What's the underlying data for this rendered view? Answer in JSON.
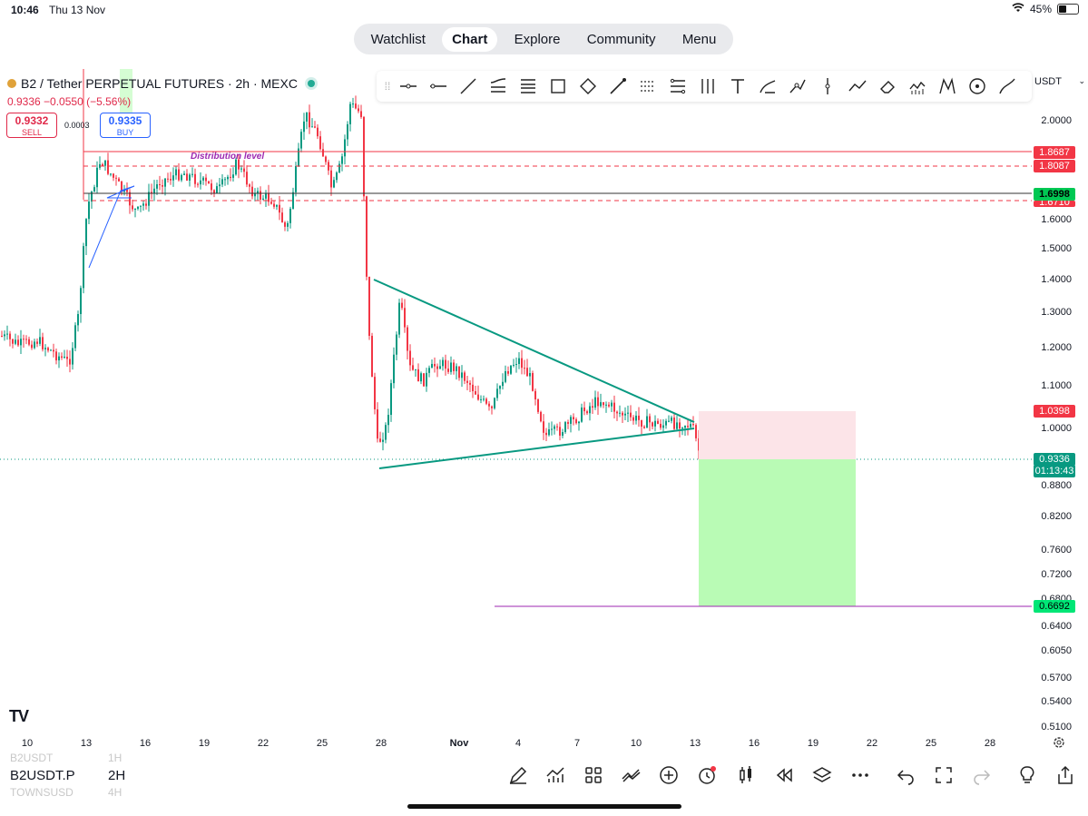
{
  "status": {
    "time": "10:46",
    "date": "Thu 13 Nov",
    "battery": "45%",
    "battery_level": 0.45
  },
  "nav": {
    "tabs": [
      {
        "label": "Watchlist",
        "active": false
      },
      {
        "label": "Chart",
        "active": true
      },
      {
        "label": "Explore",
        "active": false
      },
      {
        "label": "Community",
        "active": false
      },
      {
        "label": "Menu",
        "active": false
      }
    ]
  },
  "header": {
    "title": "B2 / Tether PERPETUAL FUTURES · 2h · MEXC",
    "quote": "0.9336  −0.0550 (−5.56%)",
    "sell": {
      "price": "0.9332",
      "label": "SELL"
    },
    "buy": {
      "price": "0.9335",
      "label": "BUY"
    },
    "spread": "0.0003"
  },
  "toolbar": {
    "currency": "USDT",
    "tools": [
      "horizontal-ray-icon",
      "horizontal-line-icon",
      "trend-line-icon",
      "fib-retracement-icon",
      "parallel-channel-icon",
      "rectangle-icon",
      "ellipse-icon",
      "arrow-icon",
      "pitchfork-icon",
      "date-range-icon",
      "long-position-icon",
      "text-icon",
      "brush-icon",
      "path-icon",
      "vertical-line-icon",
      "pattern-icon",
      "eraser-icon",
      "indicator-icon",
      "xabcd-icon",
      "circle-icon",
      "curve-icon"
    ]
  },
  "chart": {
    "distribution_label": "Distribution level",
    "price_ticks": [
      "2.0000",
      "1.6000",
      "1.5000",
      "1.4000",
      "1.3000",
      "1.2000",
      "1.1000",
      "1.0000",
      "0.8800",
      "0.8200",
      "0.7600",
      "0.7200",
      "0.6800",
      "0.6400",
      "0.6050",
      "0.5700",
      "0.5400",
      "0.5100"
    ],
    "price_labels": [
      {
        "text": "1.8687",
        "color": "#f23645"
      },
      {
        "text": "1.8087",
        "color": "#f23645"
      },
      {
        "text": "1.6998",
        "color": "#00c853"
      },
      {
        "text": "1.6710",
        "color": "#f23645"
      },
      {
        "text": "1.0398",
        "color": "#f23645"
      },
      {
        "text": "0.9336",
        "color": "#089981"
      },
      {
        "text": "01:13:43",
        "color": "#089981"
      },
      {
        "text": "0.6692",
        "color": "#00e676"
      }
    ],
    "date_ticks": [
      "10",
      "13",
      "16",
      "19",
      "22",
      "25",
      "28",
      "Nov",
      "4",
      "7",
      "10",
      "13",
      "16",
      "19",
      "22",
      "25",
      "28"
    ],
    "triangle_colors": {
      "line": "#089981"
    },
    "position": {
      "entry": "0.9336",
      "stop": "1.0398",
      "target": "0.6692",
      "stop_color": "#fce4e8",
      "target_color": "#b9fbb5"
    }
  },
  "bottom": {
    "symbol": "B2USDT.P",
    "interval": "2H",
    "ghost_symbol_above": "B2USDT",
    "ghost_interval_above": "1H",
    "ghost_symbol_below": "TOWNSUSD",
    "ghost_interval_below": "4H",
    "icons": [
      "pen-icon",
      "indicators-icon",
      "templates-icon",
      "compare-icon",
      "add-icon",
      "alert-icon",
      "candles-icon",
      "replay-icon",
      "layers-icon",
      "more-icon",
      "undo-icon",
      "fullscreen-icon",
      "redo-icon",
      "ideas-icon",
      "share-icon"
    ]
  }
}
